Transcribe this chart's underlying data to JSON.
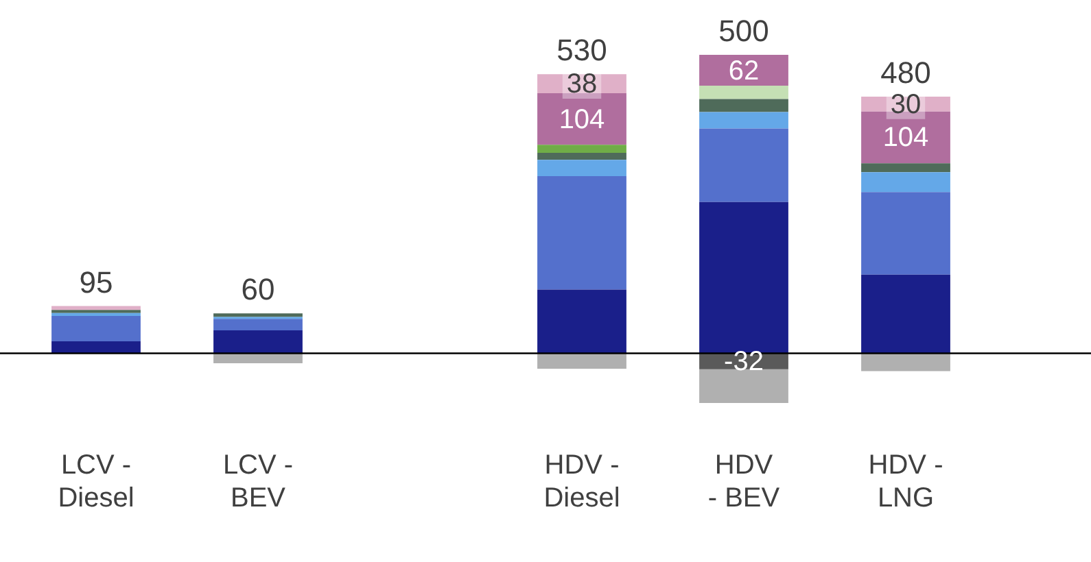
{
  "chart_data": {
    "type": "bar",
    "stacked": true,
    "categories": [
      "LCV -\nDiesel",
      "LCV -\nBEV",
      null,
      "HDV -\nDiesel",
      "HDV\n- BEV",
      "HDV -\nLNG"
    ],
    "series": [
      {
        "color": "#1a1f8a",
        "values": [
          24,
          46,
          null,
          128,
          304,
          158
        ]
      },
      {
        "color": "#5470cc",
        "values": [
          51,
          23,
          null,
          228,
          148,
          166
        ]
      },
      {
        "color": "#64a8e8",
        "values": [
          6,
          4,
          null,
          33,
          33,
          40
        ]
      },
      {
        "color": "#4f6b5a",
        "values": [
          6,
          7,
          null,
          14,
          26,
          18
        ]
      },
      {
        "color": "#70ad47",
        "values": [
          null,
          null,
          null,
          16,
          null,
          null
        ]
      },
      {
        "color": "#c5e0b4",
        "values": [
          null,
          null,
          null,
          null,
          27,
          null
        ]
      },
      {
        "color": "#b06e9e",
        "values": [
          null,
          null,
          null,
          104,
          62,
          104
        ],
        "value_labels": [
          null,
          null,
          null,
          "104",
          "62",
          "104"
        ]
      },
      {
        "color": "#e0b0c8",
        "values": [
          8,
          null,
          null,
          38,
          null,
          30
        ],
        "value_labels": [
          null,
          null,
          null,
          "38",
          null,
          "30"
        ]
      },
      {
        "color": "#5a5a5a",
        "values": [
          null,
          null,
          null,
          null,
          -32,
          null
        ],
        "value_labels": [
          null,
          null,
          null,
          null,
          "-32",
          null
        ]
      },
      {
        "color": "#b0b0b0",
        "values": [
          null,
          -20,
          null,
          -31,
          -68,
          -36
        ]
      }
    ],
    "totals": [
      "95",
      "60",
      null,
      "530",
      "500",
      "480"
    ],
    "ylim": [
      -100,
      600
    ],
    "legend": false,
    "grid": false
  }
}
